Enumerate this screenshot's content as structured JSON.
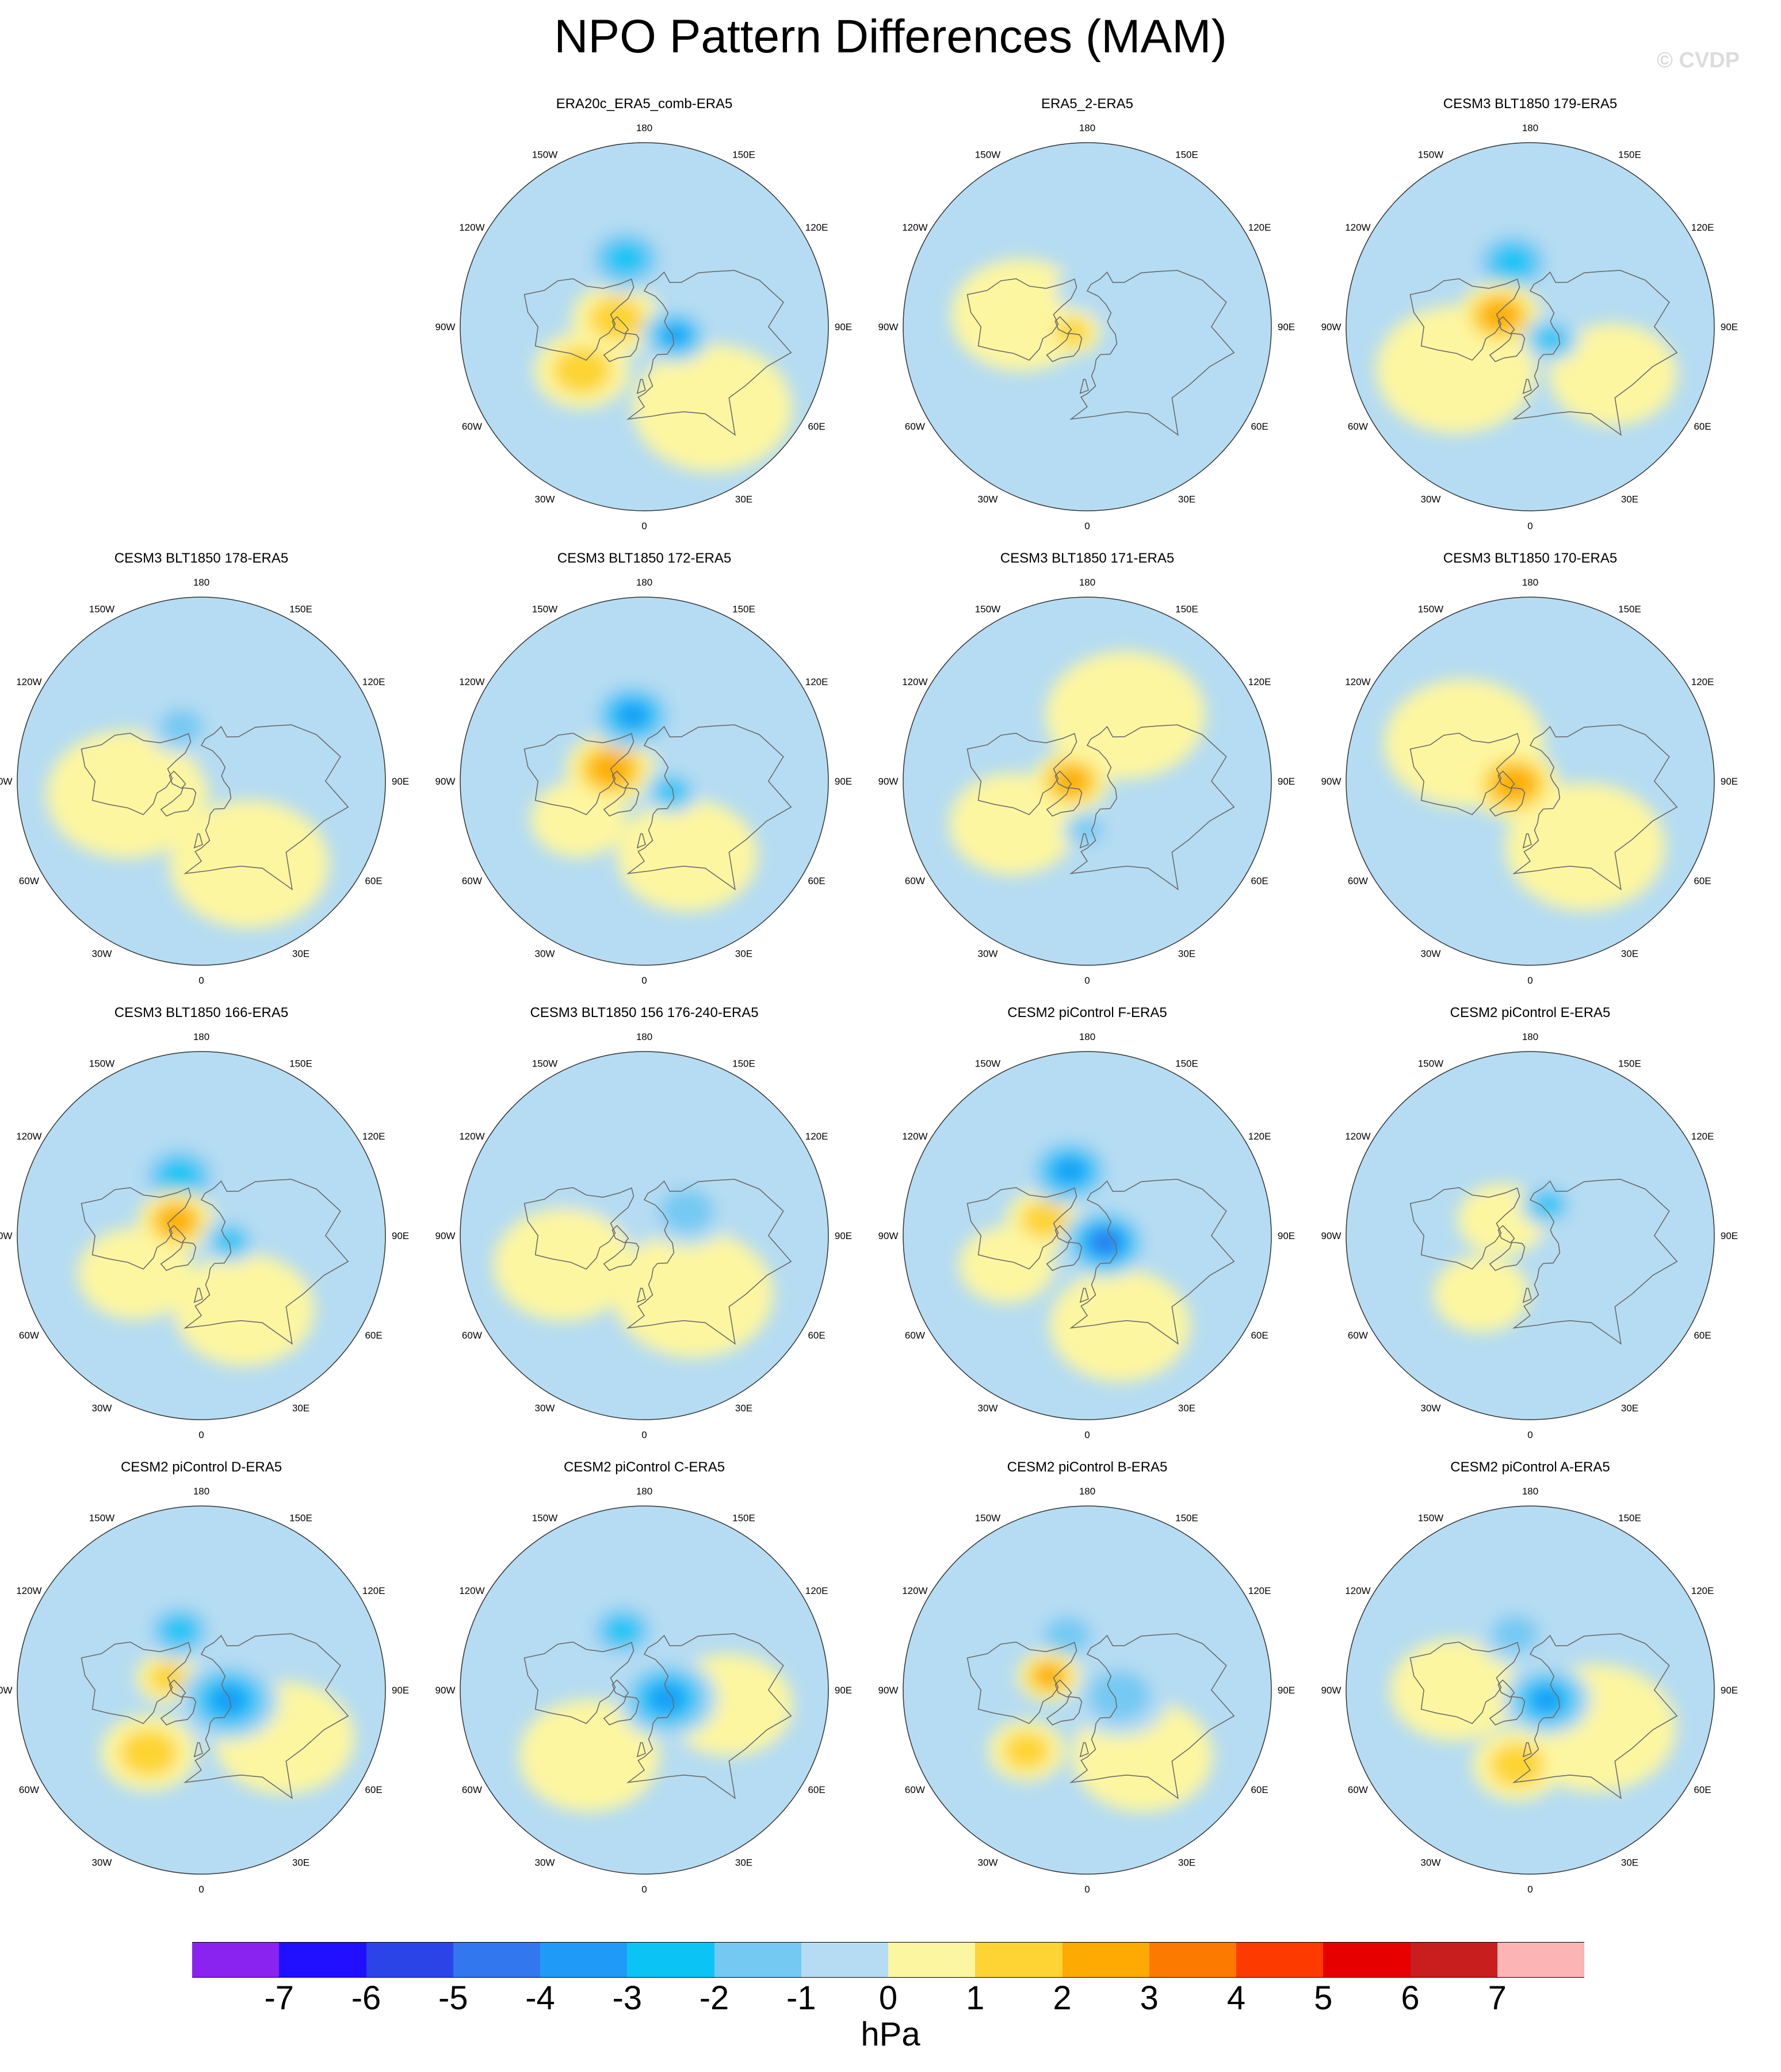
{
  "title": "NPO Pattern Differences (MAM)",
  "watermark": "© CVDP",
  "units": "hPa",
  "longitude_labels": [
    "180",
    "150E",
    "120E",
    "90E",
    "60E",
    "30E",
    "0",
    "30W",
    "60W",
    "90W",
    "120W",
    "150W"
  ],
  "colorbar": {
    "colors": [
      "#8a22f0",
      "#2010ff",
      "#2b44e8",
      "#3377ee",
      "#1f9bf7",
      "#0bc4f5",
      "#74c9f3",
      "#b5dcf2",
      "#fdf6a0",
      "#fdd433",
      "#fdab03",
      "#fd7a00",
      "#fd3a00",
      "#e60000",
      "#c81e1e",
      "#fdb4b4"
    ],
    "tick_labels": [
      "-7",
      "-6",
      "-5",
      "-4",
      "-3",
      "-2",
      "-1",
      "0",
      "1",
      "2",
      "3",
      "4",
      "5",
      "6",
      "7"
    ]
  },
  "panels": [
    {
      "title": "ERA20c_ERA5_comb-ERA5",
      "features": [
        {
          "lat": 48,
          "lon": -165,
          "r": 14,
          "level": -3
        },
        {
          "lat": 72,
          "lon": -105,
          "r": 14,
          "level": 2
        },
        {
          "lat": 70,
          "lon": 75,
          "r": 11,
          "level": -4
        },
        {
          "lat": 45,
          "lon": -55,
          "r": 15,
          "level": 2
        },
        {
          "lat": 30,
          "lon": 40,
          "r": 25,
          "level": 1
        },
        {
          "lat": 35,
          "lon": 170,
          "r": 22,
          "level": -1
        }
      ]
    },
    {
      "title": "ERA5_2-ERA5",
      "features": [
        {
          "lat": 80,
          "lon": -70,
          "r": 9,
          "level": 2
        },
        {
          "lat": 50,
          "lon": -100,
          "r": 22,
          "level": 1
        },
        {
          "lat": 65,
          "lon": 160,
          "r": 14,
          "level": -1
        }
      ]
    },
    {
      "title": "CESM3 BLT1850 179-ERA5",
      "features": [
        {
          "lat": 50,
          "lon": -165,
          "r": 14,
          "level": -3
        },
        {
          "lat": 70,
          "lon": -110,
          "r": 13,
          "level": 3
        },
        {
          "lat": 75,
          "lon": 60,
          "r": 9,
          "level": -3
        },
        {
          "lat": 40,
          "lon": -60,
          "r": 25,
          "level": 1
        },
        {
          "lat": 35,
          "lon": 60,
          "r": 20,
          "level": 1
        }
      ]
    },
    {
      "title": "CESM3 BLT1850 178-ERA5",
      "features": [
        {
          "lat": 55,
          "lon": -160,
          "r": 11,
          "level": -2
        },
        {
          "lat": 45,
          "lon": -80,
          "r": 25,
          "level": 1
        },
        {
          "lat": 35,
          "lon": 30,
          "r": 25,
          "level": 1
        },
        {
          "lat": 75,
          "lon": -60,
          "r": 9,
          "level": 1
        }
      ]
    },
    {
      "title": "CESM3 BLT1850 172-ERA5",
      "features": [
        {
          "lat": 50,
          "lon": -170,
          "r": 14,
          "level": -4
        },
        {
          "lat": 68,
          "lon": -110,
          "r": 14,
          "level": 3
        },
        {
          "lat": 72,
          "lon": 70,
          "r": 9,
          "level": -3
        },
        {
          "lat": 40,
          "lon": 30,
          "r": 22,
          "level": 1
        },
        {
          "lat": 45,
          "lon": -60,
          "r": 15,
          "level": 1
        }
      ]
    },
    {
      "title": "CESM3 BLT1850 171-ERA5",
      "features": [
        {
          "lat": 80,
          "lon": -90,
          "r": 12,
          "level": 3
        },
        {
          "lat": 45,
          "lon": 150,
          "r": 25,
          "level": 1
        },
        {
          "lat": 40,
          "lon": -60,
          "r": 20,
          "level": 1
        },
        {
          "lat": 60,
          "lon": 0,
          "r": 8,
          "level": -2
        }
      ]
    },
    {
      "title": "CESM3 BLT1850 170-ERA5",
      "features": [
        {
          "lat": 80,
          "lon": -80,
          "r": 14,
          "level": 3
        },
        {
          "lat": 45,
          "lon": -120,
          "r": 25,
          "level": 1
        },
        {
          "lat": 40,
          "lon": 40,
          "r": 25,
          "level": 1
        }
      ]
    },
    {
      "title": "CESM3 BLT1850 166-ERA5",
      "features": [
        {
          "lat": 52,
          "lon": -160,
          "r": 14,
          "level": -3
        },
        {
          "lat": 72,
          "lon": -120,
          "r": 12,
          "level": 3
        },
        {
          "lat": 72,
          "lon": 80,
          "r": 9,
          "level": -3
        },
        {
          "lat": 40,
          "lon": 30,
          "r": 22,
          "level": 1
        },
        {
          "lat": 45,
          "lon": -60,
          "r": 18,
          "level": 1
        }
      ]
    },
    {
      "title": "CESM3 BLT1850 156 176-240-ERA5",
      "features": [
        {
          "lat": 60,
          "lon": -150,
          "r": 20,
          "level": -1
        },
        {
          "lat": 60,
          "lon": 120,
          "r": 14,
          "level": -2
        },
        {
          "lat": 45,
          "lon": 40,
          "r": 25,
          "level": 1
        },
        {
          "lat": 40,
          "lon": -70,
          "r": 22,
          "level": 1
        }
      ]
    },
    {
      "title": "CESM2 piControl F-ERA5",
      "features": [
        {
          "lat": 50,
          "lon": -165,
          "r": 14,
          "level": -4
        },
        {
          "lat": 62,
          "lon": -110,
          "r": 12,
          "level": 2
        },
        {
          "lat": 78,
          "lon": 70,
          "r": 14,
          "level": -5
        },
        {
          "lat": 35,
          "lon": 20,
          "r": 22,
          "level": 1
        },
        {
          "lat": 40,
          "lon": -70,
          "r": 15,
          "level": 1
        }
      ]
    },
    {
      "title": "CESM2 piControl E-ERA5",
      "features": [
        {
          "lat": 68,
          "lon": 150,
          "r": 9,
          "level": -3
        },
        {
          "lat": 60,
          "lon": 100,
          "r": 16,
          "level": -1
        },
        {
          "lat": 70,
          "lon": -120,
          "r": 14,
          "level": 1
        },
        {
          "lat": 45,
          "lon": -40,
          "r": 15,
          "level": 1
        }
      ]
    },
    {
      "title": "CESM2 piControl D-ERA5",
      "features": [
        {
          "lat": 52,
          "lon": -160,
          "r": 12,
          "level": -3
        },
        {
          "lat": 72,
          "lon": 70,
          "r": 16,
          "level": -4
        },
        {
          "lat": 68,
          "lon": -110,
          "r": 10,
          "level": 2
        },
        {
          "lat": 42,
          "lon": -40,
          "r": 15,
          "level": 2
        },
        {
          "lat": 35,
          "lon": 60,
          "r": 22,
          "level": 1
        }
      ]
    },
    {
      "title": "CESM2 piControl C-ERA5",
      "features": [
        {
          "lat": 52,
          "lon": -160,
          "r": 12,
          "level": -3
        },
        {
          "lat": 75,
          "lon": 70,
          "r": 16,
          "level": -4
        },
        {
          "lat": 40,
          "lon": -40,
          "r": 22,
          "level": 1
        },
        {
          "lat": 40,
          "lon": 80,
          "r": 20,
          "level": 1
        }
      ]
    },
    {
      "title": "CESM2 piControl B-ERA5",
      "features": [
        {
          "lat": 55,
          "lon": -160,
          "r": 12,
          "level": -2
        },
        {
          "lat": 65,
          "lon": -110,
          "r": 10,
          "level": 3
        },
        {
          "lat": 70,
          "lon": 80,
          "r": 16,
          "level": -2
        },
        {
          "lat": 40,
          "lon": -45,
          "r": 12,
          "level": 2
        },
        {
          "lat": 40,
          "lon": 40,
          "r": 22,
          "level": 1
        }
      ]
    },
    {
      "title": "CESM2 piControl A-ERA5",
      "features": [
        {
          "lat": 55,
          "lon": -165,
          "r": 12,
          "level": -2
        },
        {
          "lat": 78,
          "lon": 60,
          "r": 14,
          "level": -4
        },
        {
          "lat": 45,
          "lon": -10,
          "r": 14,
          "level": 2
        },
        {
          "lat": 45,
          "lon": 60,
          "r": 25,
          "level": 1
        },
        {
          "lat": 45,
          "lon": -90,
          "r": 20,
          "level": 1
        }
      ]
    }
  ]
}
